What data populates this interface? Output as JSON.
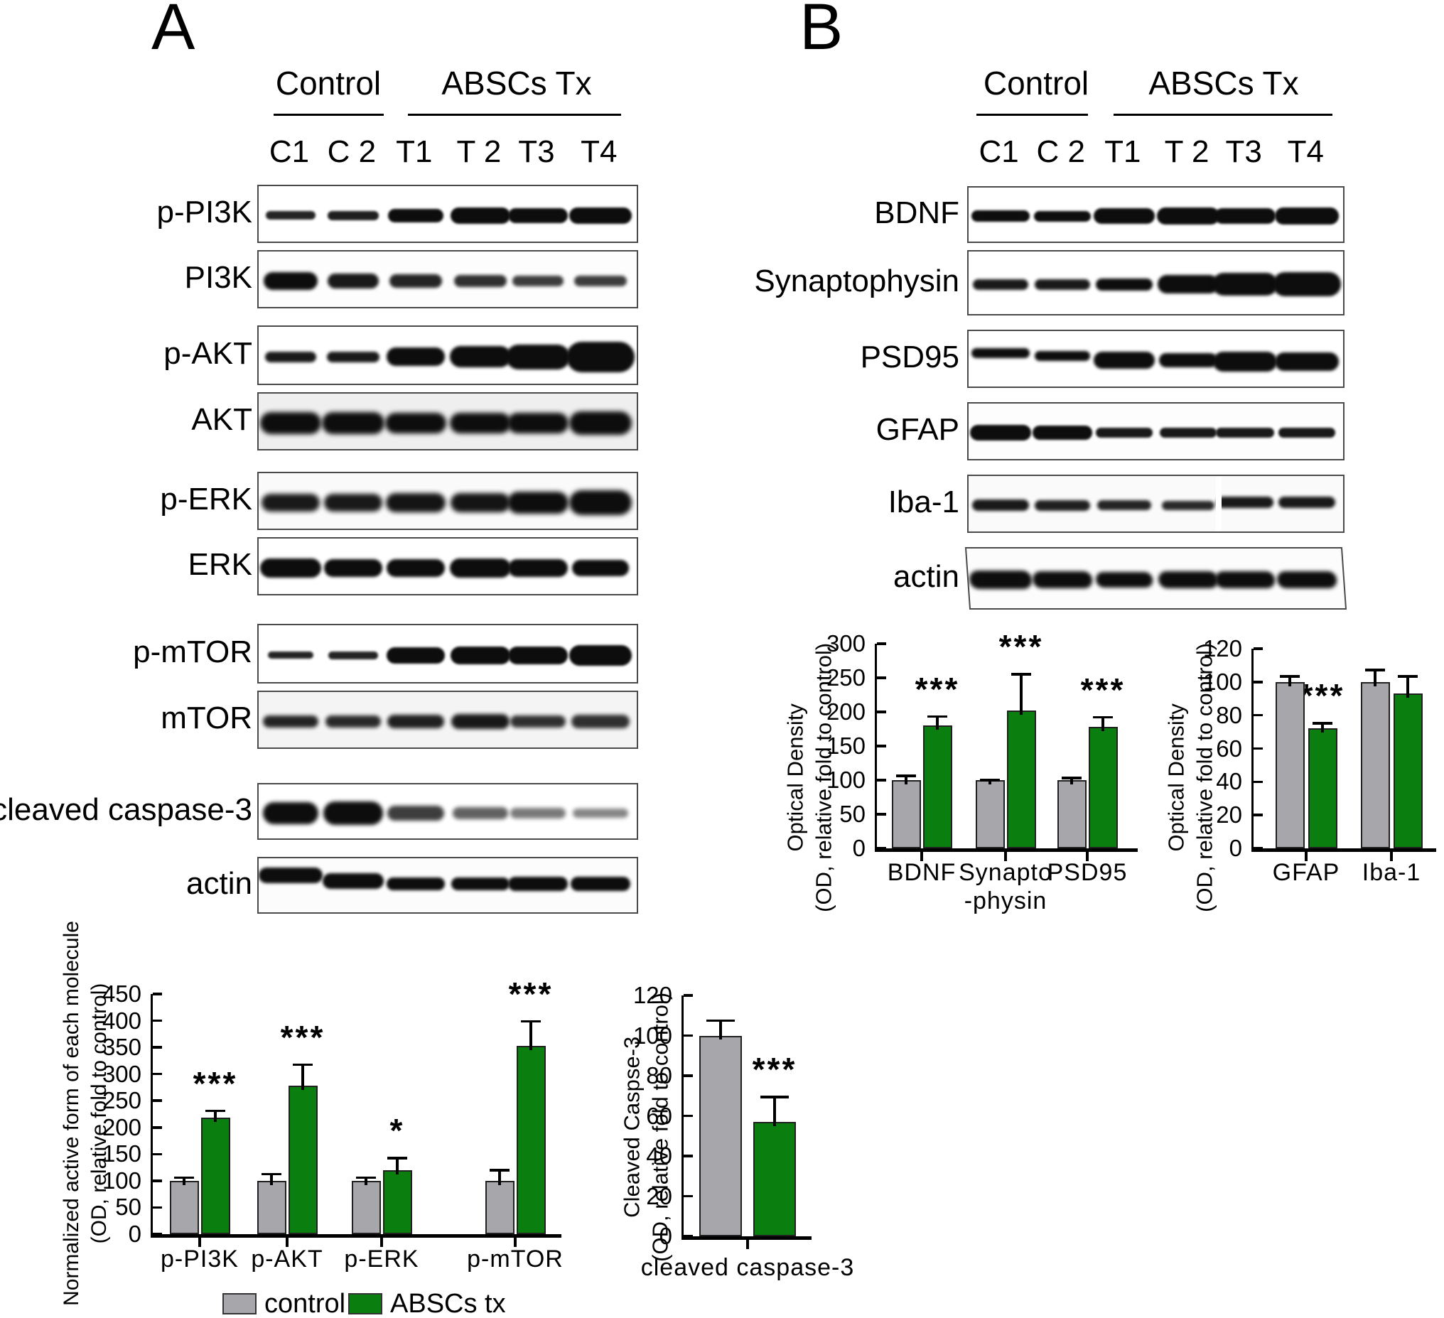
{
  "colors": {
    "control_fill": "#a7a7ab",
    "treated_fill": "#0a7e0e",
    "bar_border": "#202020",
    "band": "#0d0d0d",
    "axis": "#000000"
  },
  "panelA": {
    "letter": "A",
    "header": {
      "control": "Control",
      "treated": "ABSCs Tx"
    },
    "lanes": [
      "C1",
      "C 2",
      "T1",
      "T 2",
      "T3",
      "T4"
    ],
    "blots": [
      {
        "label": "p-PI3K",
        "blur": 1.5,
        "bands": [
          {
            "w": 70,
            "h": 12,
            "o": 0.9
          },
          {
            "w": 72,
            "h": 13,
            "o": 0.92
          },
          {
            "w": 78,
            "h": 19,
            "o": 1
          },
          {
            "w": 84,
            "h": 23,
            "o": 1
          },
          {
            "w": 84,
            "h": 21,
            "o": 1
          },
          {
            "w": 88,
            "h": 23,
            "o": 1
          }
        ]
      },
      {
        "label": "PI3K",
        "blur": 2.5,
        "bands": [
          {
            "w": 76,
            "h": 25,
            "o": 1
          },
          {
            "w": 72,
            "h": 21,
            "o": 0.95
          },
          {
            "w": 74,
            "h": 19,
            "o": 0.9
          },
          {
            "w": 74,
            "h": 17,
            "o": 0.85
          },
          {
            "w": 72,
            "h": 15,
            "o": 0.8
          },
          {
            "w": 74,
            "h": 15,
            "o": 0.8
          }
        ]
      },
      {
        "label": "p-AKT",
        "blur": 2,
        "bands": [
          {
            "w": 72,
            "h": 15,
            "o": 0.95
          },
          {
            "w": 74,
            "h": 15,
            "o": 0.95
          },
          {
            "w": 82,
            "h": 26,
            "o": 1
          },
          {
            "w": 86,
            "h": 30,
            "o": 1
          },
          {
            "w": 90,
            "h": 35,
            "o": 1
          },
          {
            "w": 96,
            "h": 43,
            "o": 1
          }
        ]
      },
      {
        "label": "AKT",
        "blur": 3.5,
        "bands": [
          {
            "w": 86,
            "h": 31,
            "o": 1
          },
          {
            "w": 88,
            "h": 31,
            "o": 1
          },
          {
            "w": 86,
            "h": 29,
            "o": 1
          },
          {
            "w": 86,
            "h": 29,
            "o": 1
          },
          {
            "w": 86,
            "h": 29,
            "o": 1
          },
          {
            "w": 88,
            "h": 33,
            "o": 1
          }
        ]
      },
      {
        "label": "p-ERK",
        "blur": 3.5,
        "bands": [
          {
            "w": 82,
            "h": 25,
            "o": 0.95
          },
          {
            "w": 82,
            "h": 25,
            "o": 0.95
          },
          {
            "w": 84,
            "h": 27,
            "o": 0.97
          },
          {
            "w": 84,
            "h": 27,
            "o": 0.97
          },
          {
            "w": 86,
            "h": 31,
            "o": 1
          },
          {
            "w": 88,
            "h": 35,
            "o": 1
          }
        ]
      },
      {
        "label": "ERK",
        "blur": 2,
        "bands": [
          {
            "w": 86,
            "h": 27,
            "o": 1
          },
          {
            "w": 82,
            "h": 25,
            "o": 1
          },
          {
            "w": 82,
            "h": 25,
            "o": 1
          },
          {
            "w": 86,
            "h": 27,
            "o": 1
          },
          {
            "w": 84,
            "h": 25,
            "o": 1
          },
          {
            "w": 80,
            "h": 23,
            "o": 1
          }
        ]
      },
      {
        "label": "p-mTOR",
        "blur": 1.5,
        "bands": [
          {
            "w": 64,
            "h": 10,
            "o": 0.9
          },
          {
            "w": 70,
            "h": 11,
            "o": 0.9
          },
          {
            "w": 82,
            "h": 23,
            "o": 1
          },
          {
            "w": 84,
            "h": 25,
            "o": 1
          },
          {
            "w": 84,
            "h": 25,
            "o": 1
          },
          {
            "w": 88,
            "h": 29,
            "o": 1
          }
        ]
      },
      {
        "label": "mTOR",
        "blur": 3,
        "bands": [
          {
            "w": 78,
            "h": 17,
            "o": 0.9
          },
          {
            "w": 78,
            "h": 17,
            "o": 0.88
          },
          {
            "w": 80,
            "h": 19,
            "o": 0.92
          },
          {
            "w": 82,
            "h": 21,
            "o": 0.95
          },
          {
            "w": 78,
            "h": 17,
            "o": 0.85
          },
          {
            "w": 82,
            "h": 19,
            "o": 0.85
          }
        ]
      },
      {
        "label": "cleaved caspase-3",
        "blur": 3,
        "bands": [
          {
            "w": 78,
            "h": 31,
            "o": 1
          },
          {
            "w": 84,
            "h": 33,
            "o": 1
          },
          {
            "w": 80,
            "h": 21,
            "o": 0.8
          },
          {
            "w": 78,
            "h": 17,
            "o": 0.65
          },
          {
            "w": 78,
            "h": 15,
            "o": 0.55
          },
          {
            "w": 78,
            "h": 13,
            "o": 0.5
          }
        ]
      },
      {
        "label": "actin",
        "blur": 2,
        "bands": [
          {
            "w": 90,
            "h": 22,
            "o": 1,
            "dy": -16
          },
          {
            "w": 86,
            "h": 22,
            "o": 1,
            "dy": -8
          },
          {
            "w": 82,
            "h": 18,
            "o": 1,
            "dy": -4
          },
          {
            "w": 82,
            "h": 18,
            "o": 1,
            "dy": -4
          },
          {
            "w": 84,
            "h": 20,
            "o": 1,
            "dy": -4
          },
          {
            "w": 84,
            "h": 20,
            "o": 1,
            "dy": -4
          }
        ]
      }
    ]
  },
  "panelB": {
    "letter": "B",
    "header": {
      "control": "Control",
      "treated": "ABSCs Tx"
    },
    "lanes": [
      "C1",
      "C 2",
      "T1",
      "T 2",
      "T3",
      "T4"
    ],
    "blots": [
      {
        "label": "BDNF",
        "blur": 1.5,
        "bands": [
          {
            "w": 82,
            "h": 16,
            "o": 1
          },
          {
            "w": 80,
            "h": 15,
            "o": 1
          },
          {
            "w": 86,
            "h": 22,
            "o": 1
          },
          {
            "w": 88,
            "h": 24,
            "o": 1
          },
          {
            "w": 86,
            "h": 22,
            "o": 1
          },
          {
            "w": 90,
            "h": 24,
            "o": 1
          }
        ]
      },
      {
        "label": "Synaptophysin",
        "blur": 2,
        "bands": [
          {
            "w": 78,
            "h": 15,
            "o": 0.95
          },
          {
            "w": 78,
            "h": 15,
            "o": 0.95
          },
          {
            "w": 80,
            "h": 17,
            "o": 1
          },
          {
            "w": 86,
            "h": 26,
            "o": 1
          },
          {
            "w": 92,
            "h": 32,
            "o": 1
          },
          {
            "w": 96,
            "h": 34,
            "o": 1
          }
        ]
      },
      {
        "label": "PSD95",
        "blur": 2,
        "bands": [
          {
            "w": 82,
            "h": 14,
            "o": 1,
            "dy": -10
          },
          {
            "w": 78,
            "h": 14,
            "o": 1,
            "dy": -6
          },
          {
            "w": 86,
            "h": 24,
            "o": 1
          },
          {
            "w": 82,
            "h": 20,
            "o": 1
          },
          {
            "w": 90,
            "h": 28,
            "o": 1,
            "dy": 2
          },
          {
            "w": 90,
            "h": 26,
            "o": 1,
            "dy": 2
          }
        ]
      },
      {
        "label": "GFAP",
        "blur": 1.5,
        "bands": [
          {
            "w": 86,
            "h": 22,
            "o": 1
          },
          {
            "w": 84,
            "h": 20,
            "o": 1
          },
          {
            "w": 80,
            "h": 14,
            "o": 0.95
          },
          {
            "w": 80,
            "h": 14,
            "o": 0.95
          },
          {
            "w": 82,
            "h": 14,
            "o": 0.95
          },
          {
            "w": 80,
            "h": 14,
            "o": 0.95
          }
        ]
      },
      {
        "label": "Iba-1",
        "blur": 2.5,
        "bands": [
          {
            "w": 80,
            "h": 16,
            "o": 0.95
          },
          {
            "w": 78,
            "h": 15,
            "o": 0.92
          },
          {
            "w": 76,
            "h": 14,
            "o": 0.9
          },
          {
            "w": 74,
            "h": 13,
            "o": 0.88
          },
          {
            "w": 80,
            "h": 16,
            "o": 0.95,
            "dy": -4
          },
          {
            "w": 80,
            "h": 16,
            "o": 0.95,
            "dy": -4
          }
        ]
      },
      {
        "label": "actin",
        "blur": 3,
        "bands": [
          {
            "w": 88,
            "h": 26,
            "o": 1
          },
          {
            "w": 84,
            "h": 24,
            "o": 1
          },
          {
            "w": 80,
            "h": 22,
            "o": 1
          },
          {
            "w": 84,
            "h": 24,
            "o": 1
          },
          {
            "w": 84,
            "h": 24,
            "o": 1
          },
          {
            "w": 84,
            "h": 24,
            "o": 1
          }
        ]
      }
    ]
  },
  "legend": {
    "control": "control",
    "treated": "ABSCs tx"
  },
  "chart_data": [
    {
      "id": "signaling",
      "type": "bar",
      "categories": [
        [
          "p-PI3K"
        ],
        [
          "p-AKT"
        ],
        [
          "p-ERK"
        ],
        [
          "p-mTOR"
        ]
      ],
      "series": [
        {
          "name": "control",
          "values": [
            100,
            100,
            100,
            100
          ],
          "errors": [
            8,
            15,
            8,
            22
          ]
        },
        {
          "name": "ABSCs tx",
          "values": [
            218,
            278,
            120,
            353
          ],
          "errors": [
            15,
            42,
            25,
            48
          ]
        }
      ],
      "significance": [
        "***",
        "***",
        "*",
        "***"
      ],
      "ylabel_lines": [
        "Normalized active form of each molecule",
        "(OD, relative fold to control)"
      ],
      "ylim": [
        0,
        450
      ],
      "ytick_step": 50,
      "grid": false,
      "legend_position": "bottom"
    },
    {
      "id": "caspase",
      "type": "bar",
      "categories": [
        [
          "cleaved caspase-3"
        ]
      ],
      "series": [
        {
          "name": "control",
          "values": [
            100
          ],
          "errors": [
            8
          ]
        },
        {
          "name": "ABSCs tx",
          "values": [
            57
          ],
          "errors": [
            13
          ]
        }
      ],
      "significance": [
        "***"
      ],
      "ylabel_lines": [
        "Cleaved Caspse-3",
        "(OD, relative fold to control)"
      ],
      "ylim": [
        0,
        120
      ],
      "ytick_step": 20,
      "grid": false
    },
    {
      "id": "synaptic",
      "type": "bar",
      "categories": [
        [
          "BDNF"
        ],
        [
          "Synapto",
          "-physin"
        ],
        [
          "PSD95"
        ]
      ],
      "series": [
        {
          "name": "control",
          "values": [
            100,
            100,
            100
          ],
          "errors": [
            8,
            2,
            5
          ]
        },
        {
          "name": "ABSCs tx",
          "values": [
            180,
            202,
            178
          ],
          "errors": [
            15,
            55,
            16
          ]
        }
      ],
      "significance": [
        "***",
        "***",
        "***"
      ],
      "ylabel_lines": [
        "Optical Density",
        "(OD, relative fold to control)"
      ],
      "ylim": [
        0,
        300
      ],
      "ytick_step": 50,
      "grid": false
    },
    {
      "id": "glia",
      "type": "bar",
      "categories": [
        [
          "GFAP"
        ],
        [
          "Iba-1"
        ]
      ],
      "series": [
        {
          "name": "control",
          "values": [
            100,
            100
          ],
          "errors": [
            4,
            8
          ]
        },
        {
          "name": "ABSCs tx",
          "values": [
            72,
            93
          ],
          "errors": [
            4,
            11
          ]
        }
      ],
      "significance": [
        "***",
        ""
      ],
      "ylabel_lines": [
        "Optical Density",
        "(OD, relative fold to control)"
      ],
      "ylim": [
        0,
        120
      ],
      "ytick_step": 20,
      "grid": false
    }
  ]
}
